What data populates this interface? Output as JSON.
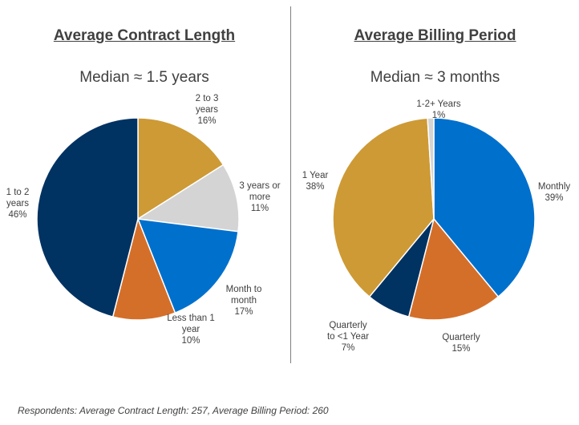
{
  "footnote": "Respondents: Average Contract Length: 257, Average Billing Period: 260",
  "chart_data": [
    {
      "type": "pie",
      "title": "Average Contract Length",
      "subtitle": "Median ≈ 1.5 years",
      "start_angle_deg": 0,
      "direction": "clockwise",
      "slices": [
        {
          "label": [
            "2 to 3",
            "years"
          ],
          "value": 16,
          "value_label": "16%",
          "color": "#CD9A35"
        },
        {
          "label": [
            "3 years or",
            "more"
          ],
          "value": 11,
          "value_label": "11%",
          "color": "#D4D4D4"
        },
        {
          "label": [
            "Month to",
            "month"
          ],
          "value": 17,
          "value_label": "17%",
          "color": "#0070CD"
        },
        {
          "label": [
            "Less than 1",
            "year"
          ],
          "value": 10,
          "value_label": "10%",
          "color": "#D46F2A"
        },
        {
          "label": [
            "1 to 2",
            "years"
          ],
          "value": 46,
          "value_label": "46%",
          "color": "#003262"
        }
      ]
    },
    {
      "type": "pie",
      "title": "Average Billing Period",
      "subtitle": "Median ≈ 3 months",
      "start_angle_deg": 0,
      "direction": "clockwise",
      "slices": [
        {
          "label": [
            "Monthly"
          ],
          "value": 39,
          "value_label": "39%",
          "color": "#0070CD"
        },
        {
          "label": [
            "Quarterly"
          ],
          "value": 15,
          "value_label": "15%",
          "color": "#D46F2A"
        },
        {
          "label": [
            "Quarterly",
            "to <1 Year"
          ],
          "value": 7,
          "value_label": "7%",
          "color": "#003262"
        },
        {
          "label": [
            "1 Year"
          ],
          "value": 38,
          "value_label": "38%",
          "color": "#CD9A35"
        },
        {
          "label": [
            "1-2+ Years"
          ],
          "value": 1,
          "value_label": "1%",
          "color": "#D4D4D4"
        }
      ]
    }
  ]
}
